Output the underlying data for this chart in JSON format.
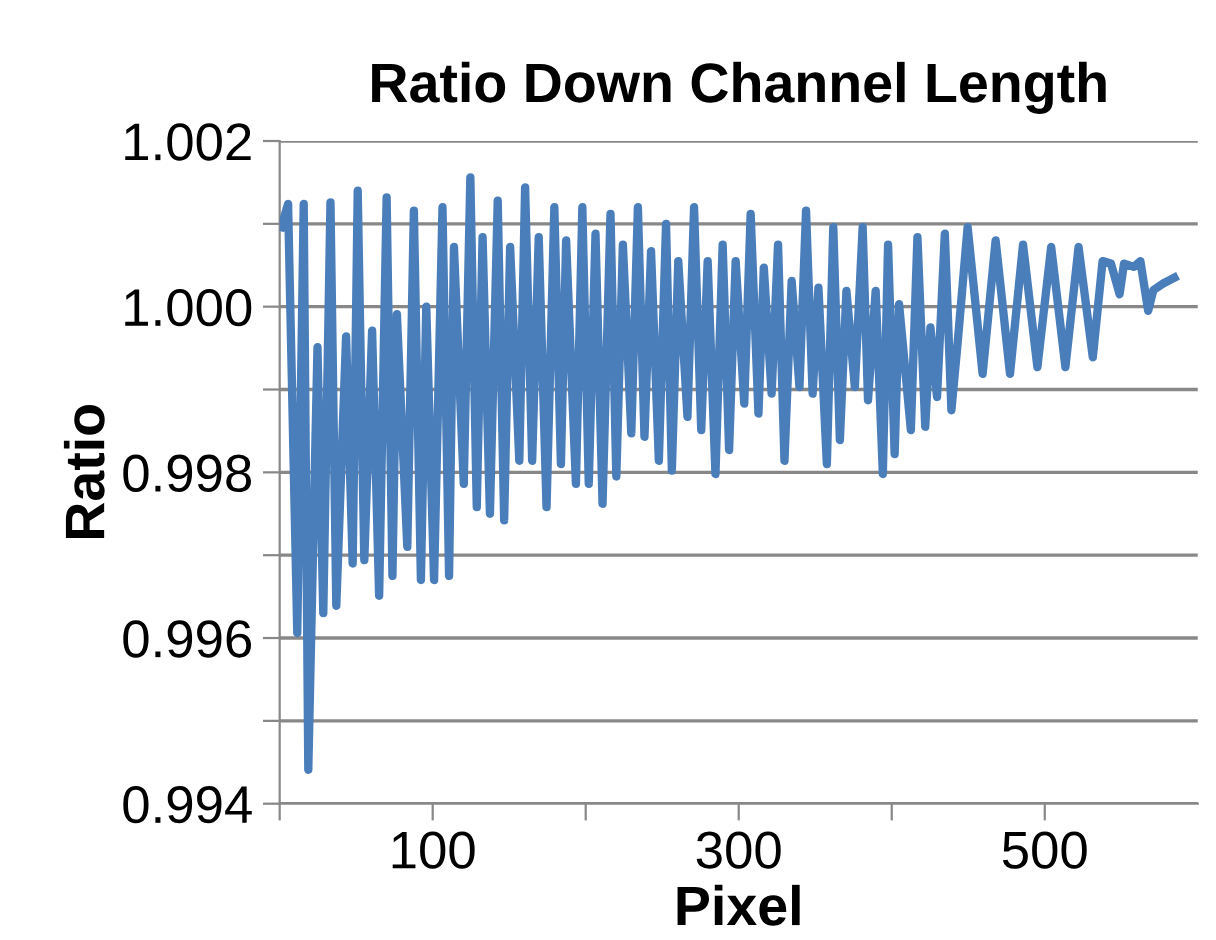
{
  "chart_data": {
    "type": "line",
    "title": "Ratio Down Channel Length",
    "xlabel": "Pixel",
    "ylabel": "Ratio",
    "xlim": [
      0,
      600
    ],
    "xticks": [
      {
        "value": 0,
        "label": null
      },
      100,
      {
        "value": 200,
        "label": null
      },
      300,
      {
        "value": 400,
        "label": null
      },
      500
    ],
    "ylim": [
      0.994,
      1.002
    ],
    "yticks": [
      0.994,
      {
        "value": 0.995,
        "label": null
      },
      0.996,
      {
        "value": 0.997,
        "label": null
      },
      0.998,
      {
        "value": 0.999,
        "label": null
      },
      {
        "value": 1.0,
        "label": "1.000"
      },
      {
        "value": 1.001,
        "label": null
      },
      1.002
    ],
    "grid": "y",
    "legend": false,
    "marker": "none",
    "line_style": "solid",
    "series": [
      {
        "color": "#4a7ebb",
        "x": [
          1,
          5.5,
          11.5,
          15.7,
          18.7,
          24.7,
          28.5,
          33.2,
          37,
          43.4,
          47.7,
          51,
          55.3,
          60.4,
          65,
          69.9,
          73.7,
          76.6,
          83.4,
          87.7,
          92.3,
          95.8,
          100.9,
          106.4,
          110.7,
          113.9,
          120.3,
          124.6,
          128.8,
          132.6,
          137.4,
          142.5,
          146.7,
          150.6,
          156.6,
          160.4,
          165,
          169.3,
          174.4,
          179.5,
          183.8,
          187.2,
          193.6,
          197.8,
          202,
          206.4,
          211,
          216.2,
          220,
          224.3,
          229.8,
          234.1,
          238.4,
          242.7,
          247.8,
          252.5,
          256.3,
          260.5,
          266.5,
          270.8,
          275.5,
          279.7,
          284.8,
          289.5,
          293.7,
          298,
          303.6,
          307.8,
          312.9,
          316.4,
          321.5,
          325.7,
          329.9,
          334.6,
          339.7,
          344,
          348.3,
          352.1,
          357.6,
          361.8,
          366.1,
          370.4,
          375.9,
          381,
          384.5,
          389.5,
          394.2,
          397.6,
          401.9,
          404.8,
          412.5,
          416.8,
          421.9,
          425.3,
          429.6,
          434.7,
          439,
          443.2,
          449.6,
          459.4,
          467.9,
          477.3,
          485.8,
          495.2,
          504.2,
          513.5,
          522.1,
          531.4,
          537.8,
          543.3,
          548.9,
          551.8,
          558.2,
          562.5,
          567.6,
          571,
          577.4,
          584.7
        ],
        "values": [
          1.00096,
          1.00124,
          0.99606,
          1.00124,
          0.99441,
          0.99951,
          0.9963,
          1.00126,
          0.99639,
          0.99964,
          0.9969,
          1.0014,
          0.99694,
          0.99971,
          0.99651,
          1.00132,
          0.99675,
          0.99991,
          0.9971,
          1.00116,
          0.9967,
          1.0,
          0.9967,
          1.0012,
          0.99675,
          1.00072,
          0.99786,
          1.00156,
          0.99758,
          1.00084,
          0.9975,
          1.00128,
          0.99742,
          1.00072,
          0.99814,
          1.00144,
          0.99814,
          1.00084,
          0.99758,
          1.0012,
          0.9981,
          1.0008,
          0.99786,
          1.0012,
          0.99786,
          1.00088,
          0.99762,
          1.00112,
          0.99795,
          1.00075,
          0.99847,
          1.0012,
          0.99843,
          1.00067,
          0.99814,
          1.001,
          0.99802,
          1.00055,
          0.99867,
          1.0012,
          0.99851,
          1.00055,
          0.99798,
          1.00075,
          0.99827,
          1.00055,
          0.99883,
          1.00112,
          0.99871,
          1.00047,
          0.99895,
          1.00075,
          0.99814,
          1.00031,
          0.99903,
          1.00116,
          0.99895,
          1.00023,
          0.9981,
          1.00096,
          0.99839,
          1.00019,
          0.99903,
          1.00096,
          0.99887,
          1.00019,
          0.99798,
          1.00075,
          0.99822,
          1.00003,
          0.99851,
          1.00084,
          0.99855,
          0.99975,
          0.99891,
          1.00088,
          0.99875,
          0.99959,
          1.00096,
          0.99919,
          1.0008,
          0.99919,
          1.00075,
          0.99927,
          1.00072,
          0.99927,
          1.00072,
          0.99939,
          1.00055,
          1.00052,
          1.00015,
          1.00052,
          1.00048,
          1.00055,
          0.99995,
          1.0002,
          1.00028,
          1.00035
        ]
      }
    ]
  }
}
